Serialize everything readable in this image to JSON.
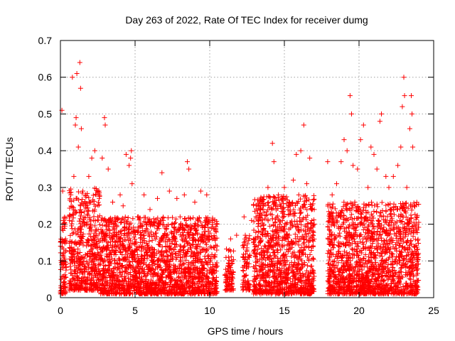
{
  "chart_data": {
    "type": "scatter",
    "title": "Day 263 of 2022, Rate Of TEC Index for receiver dumg",
    "xlabel": "GPS time / hours",
    "ylabel": "ROTI / TECUs",
    "xlim": [
      0,
      25
    ],
    "ylim": [
      0,
      0.7
    ],
    "xticks": [
      "0",
      "5",
      "10",
      "15",
      "20",
      "25"
    ],
    "yticks": [
      "0",
      "0.1",
      "0.2",
      "0.3",
      "0.4",
      "0.5",
      "0.6",
      "0.7"
    ],
    "grid": true,
    "marker": "+",
    "color": "#ff0000",
    "series": [
      {
        "points": [
          [
            0.05,
            0.05
          ],
          [
            0.1,
            0.09
          ],
          [
            0.1,
            0.51
          ],
          [
            0.15,
            0.29
          ],
          [
            0.2,
            0.12
          ],
          [
            0.25,
            0.03
          ],
          [
            0.3,
            0.2
          ],
          [
            0.7,
            0.28
          ],
          [
            0.8,
            0.6
          ],
          [
            0.9,
            0.33
          ],
          [
            1.0,
            0.47
          ],
          [
            1.05,
            0.49
          ],
          [
            1.1,
            0.61
          ],
          [
            1.2,
            0.41
          ],
          [
            1.3,
            0.64
          ],
          [
            1.35,
            0.57
          ],
          [
            1.4,
            0.46
          ],
          [
            1.5,
            0.29
          ],
          [
            1.7,
            0.25
          ],
          [
            1.9,
            0.33
          ],
          [
            2.1,
            0.38
          ],
          [
            2.3,
            0.4
          ],
          [
            2.5,
            0.22
          ],
          [
            2.8,
            0.38
          ],
          [
            2.95,
            0.49
          ],
          [
            3.0,
            0.47
          ],
          [
            3.2,
            0.35
          ],
          [
            3.5,
            0.26
          ],
          [
            4.0,
            0.28
          ],
          [
            4.2,
            0.25
          ],
          [
            4.4,
            0.39
          ],
          [
            4.6,
            0.36
          ],
          [
            4.7,
            0.38
          ],
          [
            4.75,
            0.4
          ],
          [
            4.8,
            0.31
          ],
          [
            5.2,
            0.22
          ],
          [
            5.6,
            0.28
          ],
          [
            6.0,
            0.24
          ],
          [
            6.5,
            0.27
          ],
          [
            6.8,
            0.34
          ],
          [
            7.3,
            0.29
          ],
          [
            7.8,
            0.27
          ],
          [
            8.3,
            0.28
          ],
          [
            8.5,
            0.37
          ],
          [
            8.6,
            0.35
          ],
          [
            9.0,
            0.26
          ],
          [
            9.4,
            0.29
          ],
          [
            9.8,
            0.28
          ],
          [
            10.2,
            0.21
          ],
          [
            11.4,
            0.16
          ],
          [
            11.8,
            0.17
          ],
          [
            12.3,
            0.22
          ],
          [
            12.8,
            0.21
          ],
          [
            13.2,
            0.23
          ],
          [
            13.6,
            0.25
          ],
          [
            13.9,
            0.3
          ],
          [
            14.2,
            0.42
          ],
          [
            14.3,
            0.37
          ],
          [
            14.6,
            0.28
          ],
          [
            15.0,
            0.3
          ],
          [
            15.3,
            0.26
          ],
          [
            15.6,
            0.32
          ],
          [
            15.8,
            0.39
          ],
          [
            16.1,
            0.4
          ],
          [
            16.3,
            0.47
          ],
          [
            16.5,
            0.31
          ],
          [
            16.7,
            0.38
          ],
          [
            17.0,
            0.24
          ],
          [
            17.9,
            0.37
          ],
          [
            18.2,
            0.28
          ],
          [
            18.5,
            0.31
          ],
          [
            18.8,
            0.37
          ],
          [
            19.0,
            0.43
          ],
          [
            19.2,
            0.4
          ],
          [
            19.4,
            0.55
          ],
          [
            19.5,
            0.5
          ],
          [
            19.6,
            0.36
          ],
          [
            19.9,
            0.35
          ],
          [
            20.1,
            0.43
          ],
          [
            20.3,
            0.47
          ],
          [
            20.6,
            0.3
          ],
          [
            20.8,
            0.41
          ],
          [
            21.0,
            0.39
          ],
          [
            21.2,
            0.35
          ],
          [
            21.4,
            0.48
          ],
          [
            21.5,
            0.5
          ],
          [
            21.8,
            0.33
          ],
          [
            22.0,
            0.3
          ],
          [
            22.3,
            0.33
          ],
          [
            22.6,
            0.36
          ],
          [
            22.8,
            0.41
          ],
          [
            22.9,
            0.52
          ],
          [
            23.0,
            0.6
          ],
          [
            23.05,
            0.55
          ],
          [
            23.2,
            0.3
          ],
          [
            23.4,
            0.46
          ],
          [
            23.5,
            0.55
          ],
          [
            23.55,
            0.5
          ],
          [
            23.6,
            0.41
          ],
          [
            23.7,
            0.25
          ]
        ]
      }
    ],
    "dense_segments": [
      {
        "x": [
          0.0,
          0.4
        ],
        "ymin": 0.01,
        "ymax": 0.22,
        "count": 90
      },
      {
        "x": [
          0.6,
          2.7
        ],
        "ymin": 0.02,
        "ymax": 0.3,
        "count": 520
      },
      {
        "x": [
          2.7,
          10.5
        ],
        "ymin": 0.01,
        "ymax": 0.22,
        "count": 1900
      },
      {
        "x": [
          11.0,
          11.6
        ],
        "ymin": 0.02,
        "ymax": 0.14,
        "count": 90
      },
      {
        "x": [
          12.2,
          12.7
        ],
        "ymin": 0.02,
        "ymax": 0.17,
        "count": 80
      },
      {
        "x": [
          12.9,
          17.0
        ],
        "ymin": 0.01,
        "ymax": 0.28,
        "count": 1050
      },
      {
        "x": [
          17.9,
          24.0
        ],
        "ymin": 0.01,
        "ymax": 0.26,
        "count": 1550
      }
    ]
  }
}
